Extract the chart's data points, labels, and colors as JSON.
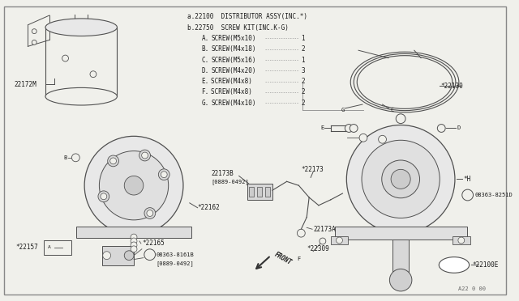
{
  "bg_color": "#f0f0eb",
  "line_color": "#505050",
  "text_color": "#1a1a1a",
  "border_color": "#909090",
  "page_num": "A22 0 00",
  "parts_text": [
    [
      "a.22100",
      "DISTRIBUTOR ASSY(INC.*)"
    ],
    [
      "b.22750",
      "SCREW KIT(INC.K-G)"
    ],
    [
      "  A.",
      "SCREW(M5x10)",
      "1"
    ],
    [
      "  B.",
      "SCREW(M4x18)",
      "2"
    ],
    [
      "  C.",
      "SCREW(M5x16)",
      "1"
    ],
    [
      "  D.",
      "SCREW(M4x20)",
      "3"
    ],
    [
      "  E.",
      "SCREW(M4x8) ",
      "2"
    ],
    [
      "  F.",
      "SCREW(M4x8) ",
      "2"
    ],
    [
      "  G.",
      "SCREW(M4x10)",
      "2"
    ]
  ]
}
